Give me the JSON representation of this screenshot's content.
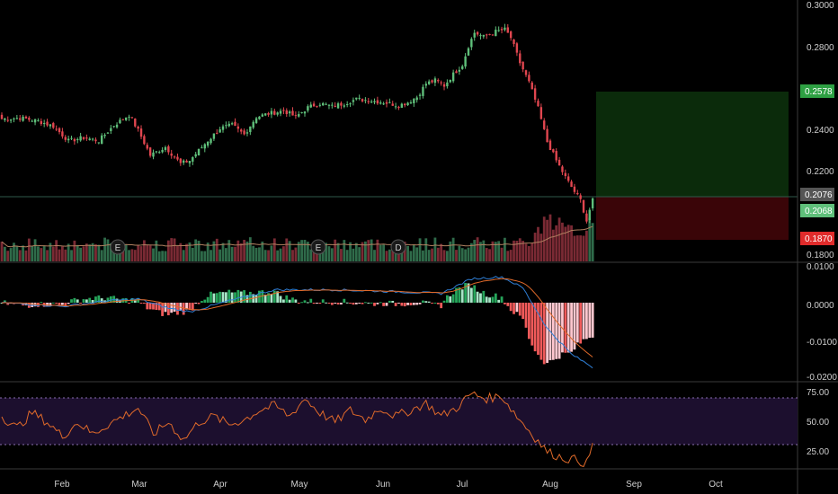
{
  "colors": {
    "background": "#000000",
    "up": "#5fbf7a",
    "down": "#e0464f",
    "volume_up": "#2f6b4a",
    "volume_down": "#7a2a34",
    "macd_line": "#2f7fd6",
    "signal_line": "#e06a2a",
    "rsi_line": "#e06a2a",
    "rsi_band": "#1c0f2e",
    "profit_zone": "#0b2b0b",
    "loss_zone": "#3a0508",
    "grid": "#2a2a2a"
  },
  "price_axis": {
    "ticks": [
      "0.3000",
      "0.2800",
      "0.2400",
      "0.2200",
      "0.1800"
    ],
    "tags": [
      {
        "value": "0.2578",
        "color": "#2ea043"
      },
      {
        "value": "0.2076",
        "color": "#555555"
      },
      {
        "value": "0.2068",
        "color": "#5fbf7a"
      },
      {
        "value": "0.1870",
        "color": "#e02b2b"
      }
    ]
  },
  "macd_axis": {
    "ticks": [
      "0.0100",
      "0.0000",
      "-0.0100",
      "-0.0200"
    ]
  },
  "rsi_axis": {
    "ticks": [
      "75.00",
      "50.00",
      "25.00"
    ]
  },
  "time_axis": {
    "labels": [
      "Feb",
      "Mar",
      "Apr",
      "May",
      "Jun",
      "Jul",
      "Aug",
      "Sep",
      "Oct"
    ]
  },
  "event_markers": [
    "E",
    "E",
    "D"
  ],
  "chart_data": {
    "type": "candlestick",
    "close_anchors": [
      [
        0,
        0.245
      ],
      [
        6,
        0.2455
      ],
      [
        12,
        0.244
      ],
      [
        17,
        0.2415
      ],
      [
        22,
        0.2345
      ],
      [
        27,
        0.236
      ],
      [
        32,
        0.2345
      ],
      [
        37,
        0.242
      ],
      [
        42,
        0.247
      ],
      [
        45,
        0.2395
      ],
      [
        49,
        0.2275
      ],
      [
        54,
        0.2315
      ],
      [
        59,
        0.2235
      ],
      [
        62,
        0.225
      ],
      [
        67,
        0.233
      ],
      [
        72,
        0.2405
      ],
      [
        76,
        0.242
      ],
      [
        80,
        0.2375
      ],
      [
        84,
        0.246
      ],
      [
        88,
        0.2475
      ],
      [
        93,
        0.249
      ],
      [
        97,
        0.246
      ],
      [
        101,
        0.2505
      ],
      [
        105,
        0.2525
      ],
      [
        109,
        0.251
      ],
      [
        113,
        0.2525
      ],
      [
        117,
        0.2545
      ],
      [
        121,
        0.254
      ],
      [
        126,
        0.253
      ],
      [
        131,
        0.2515
      ],
      [
        134,
        0.253
      ],
      [
        137,
        0.2555
      ],
      [
        140,
        0.262
      ],
      [
        143,
        0.2635
      ],
      [
        146,
        0.261
      ],
      [
        149,
        0.2665
      ],
      [
        152,
        0.271
      ],
      [
        154,
        0.28
      ],
      [
        156,
        0.2865
      ],
      [
        159,
        0.2845
      ],
      [
        163,
        0.287
      ],
      [
        166,
        0.288
      ],
      [
        168,
        0.284
      ],
      [
        171,
        0.272
      ],
      [
        174,
        0.2625
      ],
      [
        177,
        0.25
      ],
      [
        180,
        0.234
      ],
      [
        183,
        0.225
      ],
      [
        186,
        0.217
      ],
      [
        189,
        0.21
      ],
      [
        191,
        0.206
      ],
      [
        193,
        0.196
      ],
      [
        195,
        0.2068
      ]
    ],
    "trade": {
      "entry": 0.2076,
      "target": 0.2578,
      "stop": 0.187,
      "last": 0.2068
    },
    "macd": {
      "range": [
        -0.021,
        0.01
      ],
      "anchors": [
        [
          0,
          0.0
        ],
        [
          20,
          -0.001
        ],
        [
          35,
          0.0005
        ],
        [
          45,
          0.001
        ],
        [
          55,
          -0.0015
        ],
        [
          62,
          -0.0025
        ],
        [
          75,
          0.0005
        ],
        [
          90,
          0.0035
        ],
        [
          110,
          0.0035
        ],
        [
          130,
          0.003
        ],
        [
          145,
          0.0025
        ],
        [
          155,
          0.0065
        ],
        [
          165,
          0.007
        ],
        [
          172,
          0.004
        ],
        [
          180,
          -0.007
        ],
        [
          188,
          -0.014
        ],
        [
          195,
          -0.0175
        ]
      ]
    },
    "rsi": {
      "range": [
        10,
        80
      ],
      "bands": [
        30,
        70
      ],
      "anchors": [
        [
          0,
          55
        ],
        [
          5,
          45
        ],
        [
          10,
          58
        ],
        [
          15,
          50
        ],
        [
          20,
          38
        ],
        [
          25,
          50
        ],
        [
          30,
          40
        ],
        [
          35,
          48
        ],
        [
          40,
          55
        ],
        [
          45,
          62
        ],
        [
          50,
          40
        ],
        [
          55,
          50
        ],
        [
          60,
          35
        ],
        [
          65,
          50
        ],
        [
          70,
          55
        ],
        [
          75,
          48
        ],
        [
          80,
          52
        ],
        [
          85,
          60
        ],
        [
          90,
          64
        ],
        [
          95,
          55
        ],
        [
          100,
          70
        ],
        [
          105,
          58
        ],
        [
          110,
          50
        ],
        [
          115,
          60
        ],
        [
          120,
          52
        ],
        [
          125,
          62
        ],
        [
          130,
          55
        ],
        [
          135,
          60
        ],
        [
          140,
          66
        ],
        [
          145,
          55
        ],
        [
          150,
          62
        ],
        [
          155,
          74
        ],
        [
          160,
          70
        ],
        [
          165,
          72
        ],
        [
          170,
          55
        ],
        [
          175,
          40
        ],
        [
          180,
          25
        ],
        [
          185,
          20
        ],
        [
          190,
          18
        ],
        [
          193,
          15
        ],
        [
          195,
          30
        ]
      ]
    }
  }
}
